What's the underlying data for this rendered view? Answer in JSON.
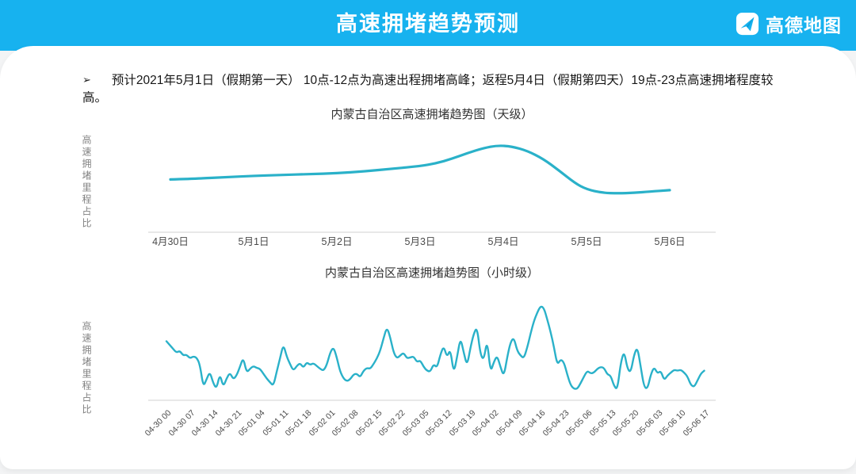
{
  "header": {
    "title": "高速拥堵趋势预测",
    "brand": "高德地图"
  },
  "summary": {
    "bullet_glyph": "➢",
    "text": "预计2021年5月1日（假期第一天） 10点-12点为高速出程拥堵高峰；返程5月4日（假期第四天）19点-23点高速拥堵程度较高。"
  },
  "colors": {
    "header_bg": "#17b2ef",
    "line": "#2ab1c9",
    "axis": "#e8e8e8",
    "card_bg": "#ffffff",
    "tick_text": "#4a4a4a",
    "ylabel_text": "#828282"
  },
  "chart_data": [
    {
      "type": "line",
      "title": "内蒙古自治区高速拥堵趋势图（天级）",
      "ylabel": "高速拥堵里程占比",
      "xlabel": "",
      "categories": [
        "4月30日",
        "5月1日",
        "5月2日",
        "5月3日",
        "5月4日",
        "5月5日",
        "5月6日"
      ],
      "values": [
        59,
        63,
        66,
        74,
        97,
        48,
        47
      ],
      "curve_points": [
        [
          0,
          59
        ],
        [
          0.33,
          60
        ],
        [
          0.67,
          61.5
        ],
        [
          1,
          63
        ],
        [
          1.33,
          64
        ],
        [
          1.67,
          65
        ],
        [
          2,
          66
        ],
        [
          2.33,
          68
        ],
        [
          2.67,
          71
        ],
        [
          3,
          74
        ],
        [
          3.19,
          77
        ],
        [
          3.38,
          82
        ],
        [
          3.57,
          88.5
        ],
        [
          3.76,
          94
        ],
        [
          3.93,
          97
        ],
        [
          4.1,
          96
        ],
        [
          4.29,
          91
        ],
        [
          4.48,
          82
        ],
        [
          4.67,
          69
        ],
        [
          4.86,
          55
        ],
        [
          5,
          48
        ],
        [
          5.19,
          44
        ],
        [
          5.38,
          43.5
        ],
        [
          5.57,
          44
        ],
        [
          5.76,
          45.5
        ],
        [
          6,
          47
        ]
      ],
      "ylim": [
        0,
        110
      ],
      "grid": false,
      "legend": false,
      "note": "No numeric y-axis ticks shown; values are relative congestion-mileage-share estimates on a 0-100 scale. Peak on 5月4日, trough on 5月5日."
    },
    {
      "type": "line",
      "title": "内蒙古自治区高速拥堵趋势图（小时级）",
      "ylabel": "高速拥堵里程占比",
      "xlabel": "",
      "x_tick_labels": [
        "04-30 00",
        "04-30 07",
        "04-30 14",
        "04-30 21",
        "05-01 04",
        "05-01 11",
        "05-01 18",
        "05-02 01",
        "05-02 08",
        "05-02 15",
        "05-02 22",
        "05-03 05",
        "05-03 12",
        "05-03 19",
        "05-04 02",
        "05-04 09",
        "05-04 16",
        "05-04 23",
        "05-05 06",
        "05-05 13",
        "05-05 20",
        "05-06 03",
        "05-06 10",
        "05-06 17"
      ],
      "x_tick_interval_hours": 7,
      "x_start": "04-30 00",
      "x_end": "05-06 17",
      "hours_span": 161,
      "values": [
        62,
        58,
        54,
        50,
        52,
        47,
        48,
        44,
        46,
        45,
        38,
        14,
        22,
        30,
        18,
        12,
        28,
        14,
        23,
        29,
        22,
        26,
        35,
        45,
        29,
        33,
        36,
        34,
        33,
        28,
        23,
        19,
        15,
        30,
        44,
        59,
        46,
        38,
        31,
        36,
        39,
        34,
        40,
        37,
        39,
        36,
        33,
        31,
        37,
        50,
        56,
        45,
        30,
        23,
        20,
        22,
        27,
        28,
        24,
        31,
        34,
        33,
        38,
        44,
        52,
        65,
        77,
        66,
        50,
        44,
        47,
        50,
        44,
        45,
        46,
        40,
        42,
        35,
        31,
        30,
        38,
        34,
        48,
        57,
        45,
        54,
        28,
        45,
        66,
        50,
        36,
        55,
        70,
        77,
        48,
        42,
        64,
        29,
        40,
        47,
        35,
        25,
        45,
        61,
        66,
        52,
        47,
        44,
        55,
        70,
        83,
        92,
        99,
        97,
        85,
        72,
        56,
        37,
        43,
        40,
        27,
        16,
        12,
        12,
        18,
        25,
        31,
        28,
        29,
        33,
        35,
        34,
        27,
        26,
        15,
        11,
        39,
        52,
        33,
        29,
        48,
        56,
        35,
        14,
        12,
        27,
        35,
        28,
        31,
        21,
        26,
        29,
        32,
        31,
        32,
        29,
        25,
        16,
        14,
        21,
        28,
        31
      ],
      "ylim": [
        0,
        105
      ],
      "grid": false,
      "legend": false,
      "note": "Hourly relative congestion values (0-100 estimates, no numeric y-axis shown). Morning departure spike 05-01 10-12, evening spike 05-02 ~19, maximum peak 05-04 ~18-19, evening spikes 05-05."
    }
  ]
}
